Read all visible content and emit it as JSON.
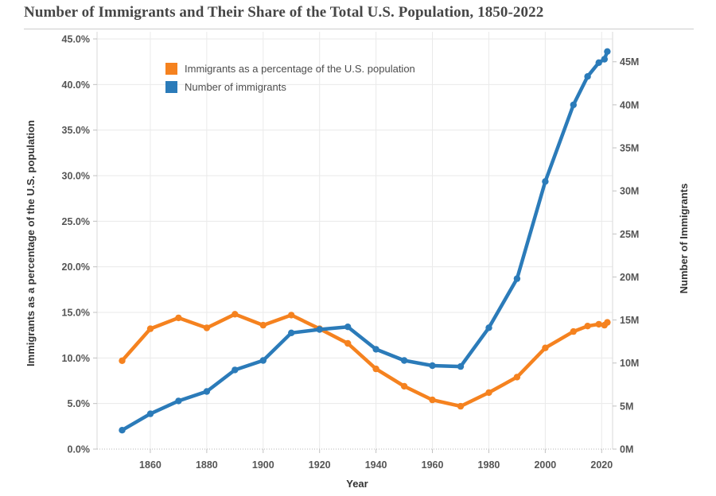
{
  "title": "Number of Immigrants and Their Share of the Total U.S. Population, 1850-2022",
  "chart_data": {
    "type": "line",
    "title": "Number of Immigrants and Their Share of the Total U.S. Population, 1850-2022",
    "xlabel": "Year",
    "ylabel_left": "Immigrants as a percentage of the U.S. population",
    "ylabel_right": "Number of Immigrants",
    "grid": true,
    "legend_position": "top-left",
    "x": [
      1850,
      1860,
      1870,
      1880,
      1890,
      1900,
      1910,
      1920,
      1930,
      1940,
      1950,
      1960,
      1970,
      1980,
      1990,
      2000,
      2010,
      2015,
      2019,
      2021,
      2022
    ],
    "series": [
      {
        "name": "Immigrants as a percentage of the U.S. population",
        "axis": "left",
        "unit": "%",
        "color": "#F5821F",
        "values": [
          9.7,
          13.2,
          14.4,
          13.3,
          14.8,
          13.6,
          14.7,
          13.2,
          11.6,
          8.8,
          6.9,
          5.4,
          4.7,
          6.2,
          7.9,
          11.1,
          12.9,
          13.5,
          13.7,
          13.6,
          13.9
        ]
      },
      {
        "name": "Number of immigrants",
        "axis": "right",
        "unit": "millions",
        "color": "#2B7BB9",
        "values": [
          2.2,
          4.1,
          5.6,
          6.7,
          9.2,
          10.3,
          13.5,
          13.9,
          14.2,
          11.6,
          10.3,
          9.7,
          9.6,
          14.1,
          19.8,
          31.1,
          40.0,
          43.3,
          44.9,
          45.3,
          46.2
        ]
      }
    ],
    "left_axis": {
      "min": 0,
      "max": 45,
      "tick_values": [
        0,
        5,
        10,
        15,
        20,
        25,
        30,
        35,
        40,
        45
      ],
      "tick_labels": [
        "0.0%",
        "5.0%",
        "10.0%",
        "15.0%",
        "20.0%",
        "25.0%",
        "30.0%",
        "35.0%",
        "40.0%",
        "45.0%"
      ]
    },
    "right_axis": {
      "min": 0,
      "max": 45,
      "tick_values": [
        0,
        5,
        10,
        15,
        20,
        25,
        30,
        35,
        40,
        45
      ],
      "tick_labels": [
        "0M",
        "5M",
        "10M",
        "15M",
        "20M",
        "25M",
        "30M",
        "35M",
        "40M",
        "45M"
      ]
    },
    "x_axis": {
      "tick_values": [
        1860,
        1880,
        1900,
        1920,
        1940,
        1960,
        1980,
        2000,
        2020
      ],
      "tick_labels": [
        "1860",
        "1880",
        "1900",
        "1920",
        "1940",
        "1960",
        "1980",
        "2000",
        "2020"
      ]
    },
    "legend": {
      "items": [
        {
          "label": "Immigrants as a percentage of the U.S. population",
          "color": "#F5821F"
        },
        {
          "label": "Number of immigrants",
          "color": "#2B7BB9"
        }
      ]
    },
    "colors": {
      "grid": "#EAEAEA",
      "plot_border": "#D9D9D9",
      "axis_dotted": "#B5B5B5",
      "tick_mark": "#C0C0C0",
      "tick_text": "#555555",
      "axis_title_text": "#333333",
      "title_text": "#464646",
      "divider": "#CCCCCC"
    }
  }
}
